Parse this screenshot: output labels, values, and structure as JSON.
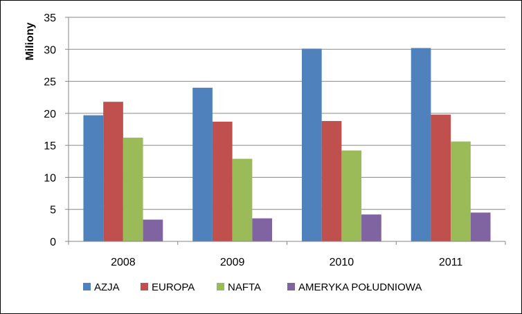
{
  "chart_data": {
    "type": "bar",
    "title": "",
    "xlabel": "",
    "ylabel": "Miliony",
    "ylim": [
      0,
      35
    ],
    "yticks": [
      0,
      5,
      10,
      15,
      20,
      25,
      30,
      35
    ],
    "grid": true,
    "legend_position": "bottom",
    "categories": [
      "2008",
      "2009",
      "2010",
      "2011"
    ],
    "series": [
      {
        "name": "AZJA",
        "color": "#4f81bd",
        "values": [
          19.7,
          24.0,
          30.1,
          30.2
        ]
      },
      {
        "name": "EUROPA",
        "color": "#c0504d",
        "values": [
          21.8,
          18.7,
          18.8,
          19.8
        ]
      },
      {
        "name": "NAFTA",
        "color": "#9bbb59",
        "values": [
          16.2,
          12.9,
          14.2,
          15.6
        ]
      },
      {
        "name": "AMERYKA POŁUDNIOWA",
        "color": "#8064a2",
        "values": [
          3.4,
          3.6,
          4.2,
          4.5
        ]
      }
    ]
  }
}
